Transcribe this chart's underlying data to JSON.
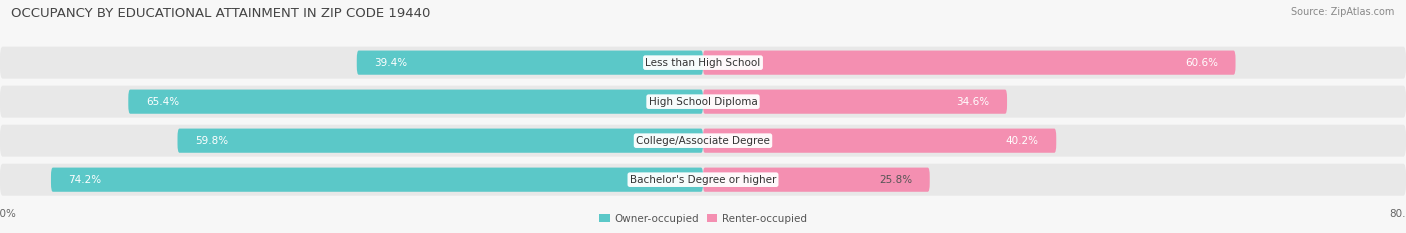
{
  "title": "OCCUPANCY BY EDUCATIONAL ATTAINMENT IN ZIP CODE 19440",
  "source": "Source: ZipAtlas.com",
  "categories": [
    "Less than High School",
    "High School Diploma",
    "College/Associate Degree",
    "Bachelor's Degree or higher"
  ],
  "owner_pct": [
    39.4,
    65.4,
    59.8,
    74.2
  ],
  "renter_pct": [
    60.6,
    34.6,
    40.2,
    25.8
  ],
  "owner_color": "#5BC8C8",
  "renter_color": "#F48FB1",
  "band_color": "#e8e8e8",
  "fig_bg": "#f7f7f7",
  "title_color": "#444444",
  "source_color": "#888888",
  "label_color_inside": "#ffffff",
  "label_color_dark": "#555555",
  "title_fontsize": 9.5,
  "source_fontsize": 7,
  "bar_label_fontsize": 7.5,
  "cat_label_fontsize": 7.5,
  "tick_fontsize": 7.5,
  "legend_fontsize": 7.5,
  "xlim": 80.0,
  "legend_owner": "Owner-occupied",
  "legend_renter": "Renter-occupied"
}
